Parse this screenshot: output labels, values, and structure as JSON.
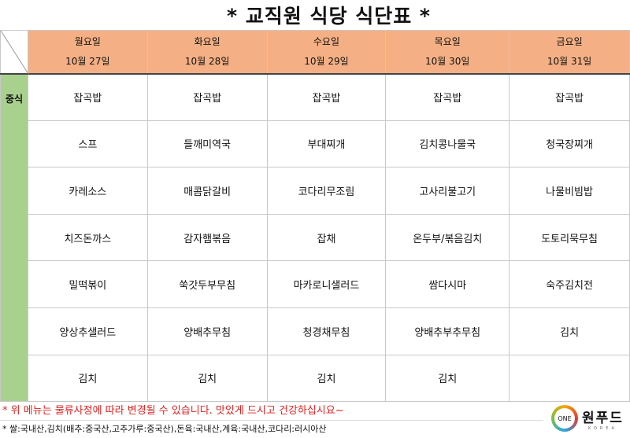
{
  "title": "* 교직원 식당 식단표 *",
  "side_label": "중식",
  "days": [
    {
      "day": "월요일",
      "date": "10월 27일",
      "menu": [
        "잡곡밥",
        "스프",
        "카레소스",
        "치즈돈까스",
        "밀떡볶이",
        "양상추샐러드",
        "김치"
      ]
    },
    {
      "day": "화요일",
      "date": "10월 28일",
      "menu": [
        "잡곡밥",
        "들깨미역국",
        "매콤닭갈비",
        "감자햄볶음",
        "쑥갓두부무침",
        "양배추무침",
        "김치"
      ]
    },
    {
      "day": "수요일",
      "date": "10월 29일",
      "menu": [
        "잡곡밥",
        "부대찌개",
        "코다리무조림",
        "잡채",
        "마카로니샐러드",
        "청경채무침",
        "김치"
      ]
    },
    {
      "day": "목요일",
      "date": "10월 30일",
      "menu": [
        "잡곡밥",
        "김치콩나물국",
        "고사리불고기",
        "온두부/볶음김치",
        "쌈다시마",
        "양배추부추무침",
        "김치"
      ]
    },
    {
      "day": "금요일",
      "date": "10월 31일",
      "menu": [
        "잡곡밥",
        "청국장찌개",
        "나물비빔밥",
        "도토리묵무침",
        "숙주김치전",
        "김치",
        ""
      ]
    }
  ],
  "notice": "* 위 메뉴는 물류사정에 따라 변경될 수 있습니다. 맛있게 드시고 건강하십시요~",
  "origin": "* 쌀:국내산,김치(배추:중국산,고추가루:중국산),돈육:국내산,계육:국내산,코다리:러시아산",
  "logo": {
    "mark": "ONE",
    "name": "원푸드",
    "sub": "KOREA"
  }
}
